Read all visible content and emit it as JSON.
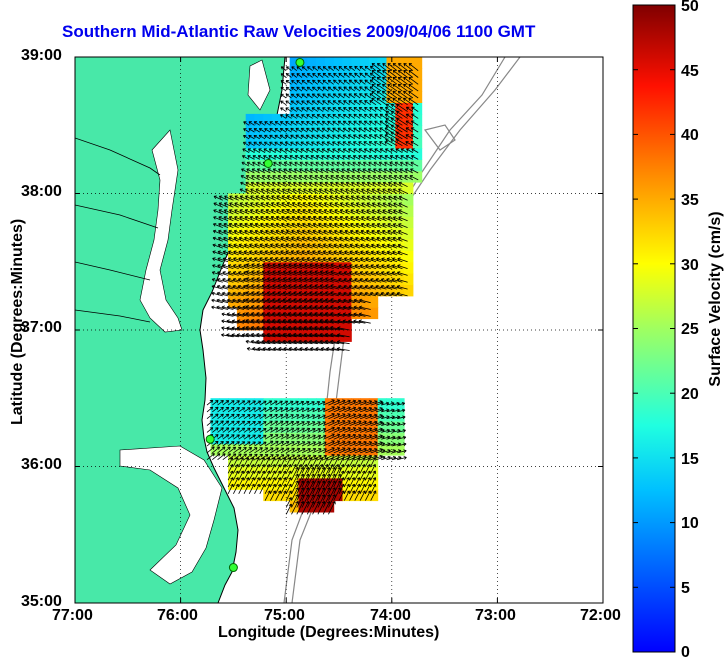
{
  "title": "Southern Mid-Atlantic Raw Velocities 2009/04/06 1100 GMT",
  "map": {
    "x_label": "Longitude (Degrees:Minutes)",
    "y_label": "Latitude (Degrees:Minutes)",
    "lon_range": [
      -77,
      -72
    ],
    "lat_range": [
      35,
      39
    ],
    "x_ticks": [
      "77:00",
      "76:00",
      "75:00",
      "74:00",
      "73:00",
      "72:00"
    ],
    "y_ticks": [
      "39:00",
      "38:00",
      "37:00",
      "36:00",
      "35:00"
    ],
    "land_color": "#48e8a8",
    "water_color": "#ffffff",
    "grid": "dotted"
  },
  "colorbar": {
    "label": "Surface Velocity (cm/s)",
    "ticks": [
      "50",
      "45",
      "40",
      "35",
      "30",
      "25",
      "20",
      "15",
      "10",
      "5",
      "0"
    ],
    "range": [
      0,
      50
    ],
    "colormap": "jet"
  },
  "chart_data": {
    "type": "heatmap",
    "quantity": "surface current speed (cm/s) with direction arrows",
    "regions": [
      {
        "name": "north",
        "lon_range": [
          -75.7,
          -73.7
        ],
        "lat_range": [
          36.8,
          38.95
        ],
        "speed_range": [
          5,
          50
        ],
        "dominant_direction": "southwest"
      },
      {
        "name": "south",
        "lon_range": [
          -75.7,
          -73.9
        ],
        "lat_range": [
          35.6,
          36.55
        ],
        "speed_range": [
          12,
          50
        ],
        "dominant_direction": "northeast"
      }
    ],
    "stations": [
      {
        "lon": -74.87,
        "lat": 38.96
      },
      {
        "lon": -75.17,
        "lat": 38.22
      },
      {
        "lon": -75.72,
        "lat": 36.2
      },
      {
        "lon": -75.5,
        "lat": 35.26
      }
    ]
  }
}
